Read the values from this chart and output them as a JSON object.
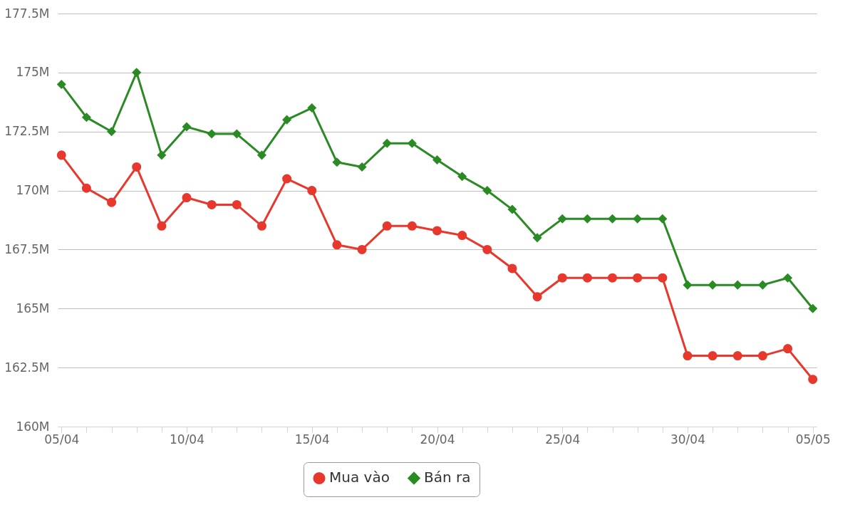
{
  "chart_data": {
    "type": "line",
    "categories": [
      "05/04",
      null,
      null,
      null,
      null,
      "10/04",
      null,
      null,
      null,
      null,
      "15/04",
      null,
      null,
      null,
      null,
      "20/04",
      null,
      null,
      null,
      null,
      "25/04",
      null,
      null,
      null,
      null,
      "30/04",
      null,
      null,
      null,
      null,
      "05/05"
    ],
    "series": [
      {
        "name": "Mua vào",
        "color": "#e8372c",
        "marker": "circle",
        "values": [
          171.5,
          170.1,
          169.5,
          171.0,
          168.5,
          169.7,
          169.4,
          169.4,
          168.5,
          170.5,
          170.0,
          167.7,
          167.5,
          168.5,
          168.5,
          168.3,
          168.1,
          167.5,
          166.7,
          165.5,
          166.3,
          166.3,
          166.3,
          166.3,
          166.3,
          163.0,
          163.0,
          163.0,
          163.0,
          163.3,
          162.0
        ]
      },
      {
        "name": "Bán ra",
        "color": "#2a8a24",
        "marker": "diamond",
        "values": [
          174.5,
          173.1,
          172.5,
          175.0,
          171.5,
          172.7,
          172.4,
          172.4,
          171.5,
          173.0,
          173.5,
          171.2,
          171.0,
          172.0,
          172.0,
          171.3,
          170.6,
          170.0,
          169.2,
          168.0,
          168.8,
          168.8,
          168.8,
          168.8,
          168.8,
          166.0,
          166.0,
          166.0,
          166.0,
          166.3,
          165.0
        ]
      }
    ],
    "ylim": [
      160,
      177.5
    ],
    "yticks": [
      {
        "value": 160,
        "label": "160M"
      },
      {
        "value": 162.5,
        "label": "162.5M"
      },
      {
        "value": 165,
        "label": "165M"
      },
      {
        "value": 167.5,
        "label": "167.5M"
      },
      {
        "value": 170,
        "label": "170M"
      },
      {
        "value": 172.5,
        "label": "172.5M"
      },
      {
        "value": 175,
        "label": "175M"
      },
      {
        "value": 177.5,
        "label": "177.5M"
      }
    ],
    "grid": "y",
    "legend": "bottom",
    "line_style": "solid"
  }
}
